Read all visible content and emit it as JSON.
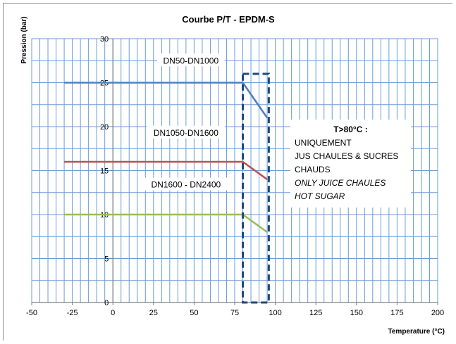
{
  "chart_data": {
    "type": "line",
    "title": "Courbe P/T - EPDM-S",
    "xlabel": "Temperature (°C)",
    "ylabel": "Pression (bar)",
    "xlim": [
      -50,
      200
    ],
    "ylim": [
      0,
      30
    ],
    "x_ticks": [
      -50,
      -25,
      0,
      25,
      50,
      75,
      100,
      125,
      150,
      175,
      200
    ],
    "y_ticks": [
      0,
      5,
      10,
      15,
      20,
      25,
      30
    ],
    "grid": true,
    "series": [
      {
        "name": "DN50-DN1000",
        "color": "#4f81bd",
        "x": [
          -30,
          80,
          95
        ],
        "y": [
          25,
          25,
          21
        ]
      },
      {
        "name": "DN1050-DN1600",
        "color": "#c0504d",
        "x": [
          -30,
          80,
          95
        ],
        "y": [
          16,
          16,
          14
        ]
      },
      {
        "name": "DN1600 - DN2400",
        "color": "#9bbb59",
        "x": [
          -30,
          80,
          95
        ],
        "y": [
          10,
          10,
          8
        ]
      }
    ],
    "highlight_box": {
      "x_range": [
        80,
        96
      ],
      "y_range": [
        0,
        26
      ],
      "color": "#1f497d",
      "style": "dashed"
    },
    "annotation": {
      "lines": [
        {
          "text": "T>80°C  :",
          "style": "bold"
        },
        {
          "text": "UNIQUEMENT",
          "style": "normal"
        },
        {
          "text": "JUS CHAULES & SUCRES",
          "style": "normal"
        },
        {
          "text": "CHAUDS",
          "style": "normal"
        },
        {
          "text": "ONLY JUICE CHAULES",
          "style": "italic"
        },
        {
          "text": "HOT SUGAR",
          "style": "italic"
        }
      ]
    }
  }
}
